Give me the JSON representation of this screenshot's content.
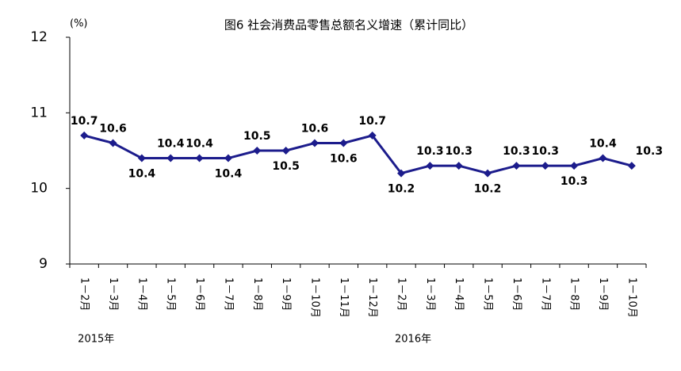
{
  "chart_data": {
    "type": "line",
    "title": "图6 社会消费品零售总额名义增速（累计同比）",
    "unit": "(%)",
    "groups": [
      {
        "label": "2015年",
        "categories": [
          "1－2月",
          "1－3月",
          "1－4月",
          "1－5月",
          "1－6月",
          "1－7月",
          "1－8月",
          "1－9月",
          "1－10月",
          "1－11月",
          "1－12月"
        ]
      },
      {
        "label": "2016年",
        "categories": [
          "1－2月",
          "1－3月",
          "1－4月",
          "1－5月",
          "1－6月",
          "1－7月",
          "1－8月",
          "1－9月",
          "1－10月"
        ]
      }
    ],
    "series": [
      {
        "name": "社会消费品零售总额名义增速",
        "color": "#1c1c8c",
        "values": [
          10.7,
          10.6,
          10.4,
          10.4,
          10.4,
          10.4,
          10.5,
          10.5,
          10.6,
          10.6,
          10.7,
          10.2,
          10.3,
          10.3,
          10.2,
          10.3,
          10.3,
          10.3,
          10.4,
          10.3
        ]
      }
    ],
    "ylim": [
      9,
      12
    ],
    "yticks": [
      9,
      10,
      11,
      12
    ],
    "grid": false
  }
}
